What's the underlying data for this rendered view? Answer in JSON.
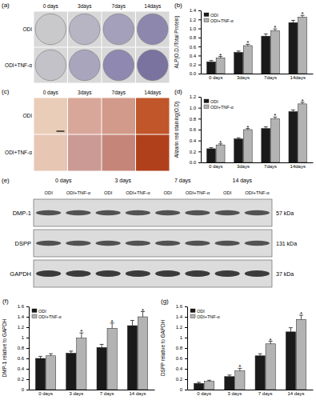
{
  "chart_data": [
    {
      "type": "bar",
      "title": "(b)",
      "y_label": "ALP(O.D./Total Protein)",
      "categories": [
        "0 days",
        "3days",
        "7days",
        "14days"
      ],
      "series": [
        {
          "name": "ODI",
          "color": "#1a1a1a",
          "values": [
            0.26,
            0.47,
            0.83,
            1.13
          ],
          "errors": [
            0.03,
            0.03,
            0.05,
            0.05
          ],
          "annotations": [
            null,
            null,
            null,
            null
          ]
        },
        {
          "name": "ODI+TNF-α",
          "color": "#b3b3b3",
          "values": [
            0.35,
            0.62,
            0.95,
            1.25
          ],
          "errors": [
            0.03,
            0.03,
            0.04,
            0.04
          ],
          "annotations": [
            "*",
            "*",
            "*",
            "*"
          ]
        }
      ],
      "ylim": [
        0,
        1.4
      ],
      "yticks": [
        {
          "value": 0,
          "label": "0.0"
        },
        0.2,
        0.4,
        0.6,
        0.8,
        {
          "value": 1,
          "label": "1.0"
        },
        1.2,
        1.4
      ],
      "legend": "upper left"
    },
    {
      "type": "bar",
      "title": "(d)",
      "y_label": "Alizarin red staining(O.D)",
      "categories": [
        "0 days",
        "3days",
        "7days",
        "14days"
      ],
      "series": [
        {
          "name": "ODI",
          "color": "#1a1a1a",
          "values": [
            0.25,
            0.43,
            0.62,
            0.93
          ],
          "errors": [
            0.02,
            0.02,
            0.03,
            0.03
          ],
          "annotations": [
            null,
            null,
            null,
            null
          ]
        },
        {
          "name": "ODI+TNF-α",
          "color": "#b3b3b3",
          "values": [
            0.32,
            0.6,
            0.8,
            1.07
          ],
          "errors": [
            0.02,
            0.02,
            0.03,
            0.03
          ],
          "annotations": [
            "*",
            "*",
            "*",
            "*"
          ]
        }
      ],
      "ylim": [
        0,
        1.2
      ],
      "yticks": [
        {
          "value": 0,
          "label": "0.0"
        },
        0.2,
        0.4,
        0.6,
        0.8,
        {
          "value": 1,
          "label": "1.0"
        },
        1.2
      ],
      "legend": "upper left"
    },
    {
      "type": "bar",
      "title": "(f)",
      "y_label": "DMP-1 relative to GAPDH",
      "categories": [
        "0 days",
        "3 days",
        "7 days",
        "14 days"
      ],
      "series": [
        {
          "name": "ODI",
          "color": "#1a1a1a",
          "values": [
            0.6,
            0.7,
            0.81,
            1.23
          ],
          "errors": [
            0.04,
            0.04,
            0.06,
            0.1
          ],
          "annotations": [
            null,
            null,
            null,
            null
          ]
        },
        {
          "name": "ODI+TNF-α",
          "color": "#b3b3b3",
          "values": [
            0.65,
            0.99,
            1.18,
            1.4
          ],
          "errors": [
            0.04,
            0.1,
            0.1,
            0.1
          ],
          "annotations": [
            null,
            "*",
            "*",
            "*"
          ]
        }
      ],
      "ylim": [
        0,
        1.6
      ],
      "yticks": [
        0,
        0.2,
        0.4,
        0.6,
        0.8,
        1,
        1.2,
        1.4,
        1.6
      ],
      "legend": "upper left"
    },
    {
      "type": "bar",
      "title": "(g)",
      "y_label": "DSPP relative to GAPDH",
      "categories": [
        "0 days",
        "3 days",
        "7 days",
        "14 days"
      ],
      "series": [
        {
          "name": "ODI",
          "color": "#1a1a1a",
          "values": [
            0.12,
            0.25,
            0.65,
            1.11
          ],
          "errors": [
            0.02,
            0.03,
            0.04,
            0.08
          ],
          "annotations": [
            null,
            null,
            null,
            null
          ]
        },
        {
          "name": "ODI+TNF-α",
          "color": "#b3b3b3",
          "values": [
            0.16,
            0.36,
            0.88,
            1.35
          ],
          "errors": [
            0.02,
            0.05,
            0.05,
            0.08
          ],
          "annotations": [
            null,
            "*",
            "*",
            "*"
          ]
        }
      ],
      "ylim": [
        0,
        1.6
      ],
      "yticks": [
        0,
        0.2,
        0.4,
        0.6,
        0.8,
        1,
        1.2,
        1.4,
        1.6
      ],
      "legend": "upper left"
    }
  ],
  "panels": {
    "a": {
      "label": "(a)",
      "columns": [
        "0 days",
        "3days",
        "7days",
        "14days"
      ],
      "rows": [
        "ODI",
        "ODI+TNF-α"
      ],
      "colors": [
        [
          "#c9c9cc",
          "#b7b5c4",
          "#a4a0bb",
          "#8e87ad"
        ],
        [
          "#c3c2c8",
          "#a9a5bd",
          "#8f88b0",
          "#7b739f"
        ]
      ]
    },
    "c": {
      "label": "(c)",
      "columns": [
        "0 days",
        "3days",
        "7days",
        "14days"
      ],
      "rows": [
        "ODI",
        "ODI+TNF-α"
      ],
      "colors": [
        [
          "#e9cdb8",
          "#d9a79a",
          "#d19a8a",
          "#c0562a"
        ],
        [
          "#e8c6b4",
          "#cc9a95",
          "#c58679",
          "#b0401c"
        ]
      ]
    },
    "e": {
      "label": "(e)",
      "times": [
        "0 days",
        "3 days",
        "7 days",
        "14 days"
      ],
      "lanes": [
        "ODI",
        "ODI+TNF-α"
      ],
      "proteins": [
        {
          "name": "DMP-1",
          "size": "57 kDa"
        },
        {
          "name": "DSPP",
          "size": "131 kDa"
        },
        {
          "name": "GAPDH",
          "size": "37 kDa"
        }
      ]
    }
  }
}
